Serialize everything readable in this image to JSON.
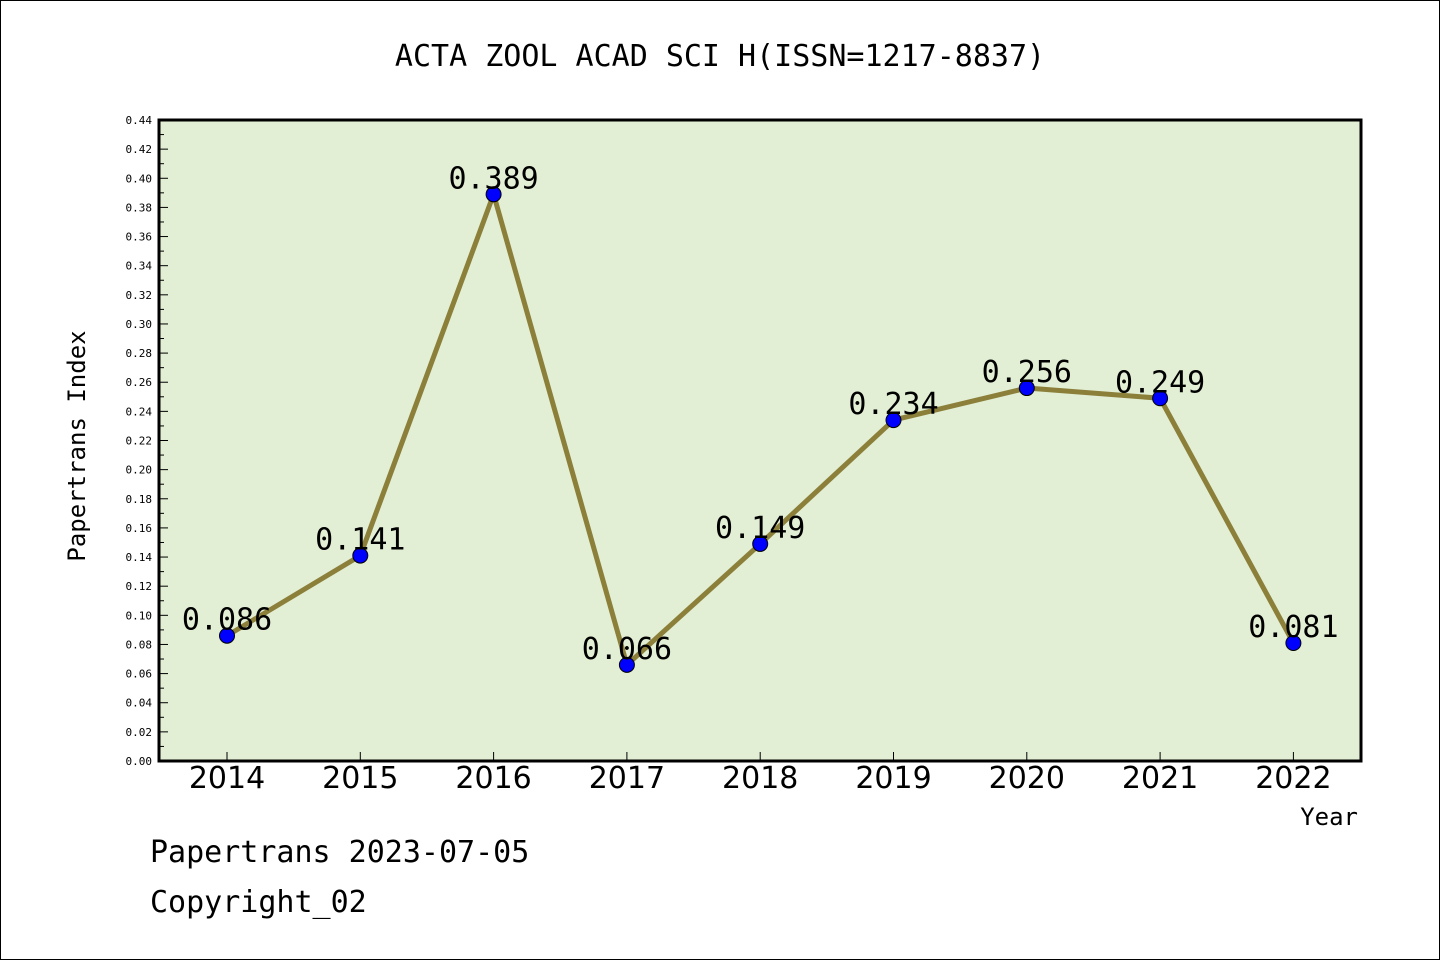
{
  "footer": {
    "source_line": "Papertrans 2023-07-05",
    "copyright_line": "Copyright_02"
  },
  "colors": {
    "plot_background": "#e2efd4",
    "line": "#8b7f3a",
    "marker": "#0000ff"
  },
  "chart_data": {
    "type": "line",
    "title": "ACTA ZOOL ACAD SCI H(ISSN=1217-8837)",
    "xlabel": "Year",
    "ylabel": "Papertrans Index",
    "categories": [
      "2014",
      "2015",
      "2016",
      "2017",
      "2018",
      "2019",
      "2020",
      "2021",
      "2022"
    ],
    "values": [
      0.086,
      0.141,
      0.389,
      0.066,
      0.149,
      0.234,
      0.256,
      0.249,
      0.081
    ],
    "value_labels": [
      "0.086",
      "0.141",
      "0.389",
      "0.066",
      "0.149",
      "0.234",
      "0.256",
      "0.249",
      "0.081"
    ],
    "ylim": [
      0,
      0.44
    ],
    "yticks": [
      "0.00",
      "0.02",
      "0.04",
      "0.06",
      "0.08",
      "0.10",
      "0.12",
      "0.14",
      "0.16",
      "0.18",
      "0.20",
      "0.22",
      "0.24",
      "0.26",
      "0.28",
      "0.30",
      "0.32",
      "0.34",
      "0.36",
      "0.38",
      "0.40",
      "0.42",
      "0.44"
    ],
    "grid": false,
    "legend": "none"
  }
}
